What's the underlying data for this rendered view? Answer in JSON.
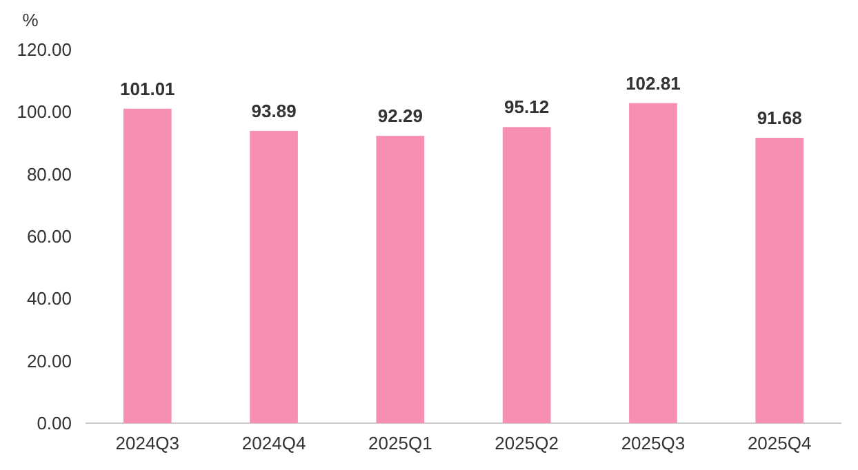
{
  "chart_data": {
    "type": "bar",
    "ylabel": "%",
    "categories": [
      "2024Q3",
      "2024Q4",
      "2025Q1",
      "2025Q2",
      "2025Q3",
      "2025Q4"
    ],
    "series": [
      {
        "color": "#f78fb3",
        "values": [
          101.01,
          93.89,
          92.29,
          95.12,
          102.81,
          91.68
        ]
      }
    ],
    "ylim": [
      0,
      120
    ],
    "yticks": [
      {
        "value": 0,
        "label": "0.00"
      },
      {
        "value": 20,
        "label": "20.00"
      },
      {
        "value": 40,
        "label": "40.00"
      },
      {
        "value": 60,
        "label": "60.00"
      },
      {
        "value": 80,
        "label": "80.00"
      },
      {
        "value": 100,
        "label": "100.00"
      },
      {
        "value": 120,
        "label": "120.00"
      }
    ],
    "data_labels": true
  }
}
